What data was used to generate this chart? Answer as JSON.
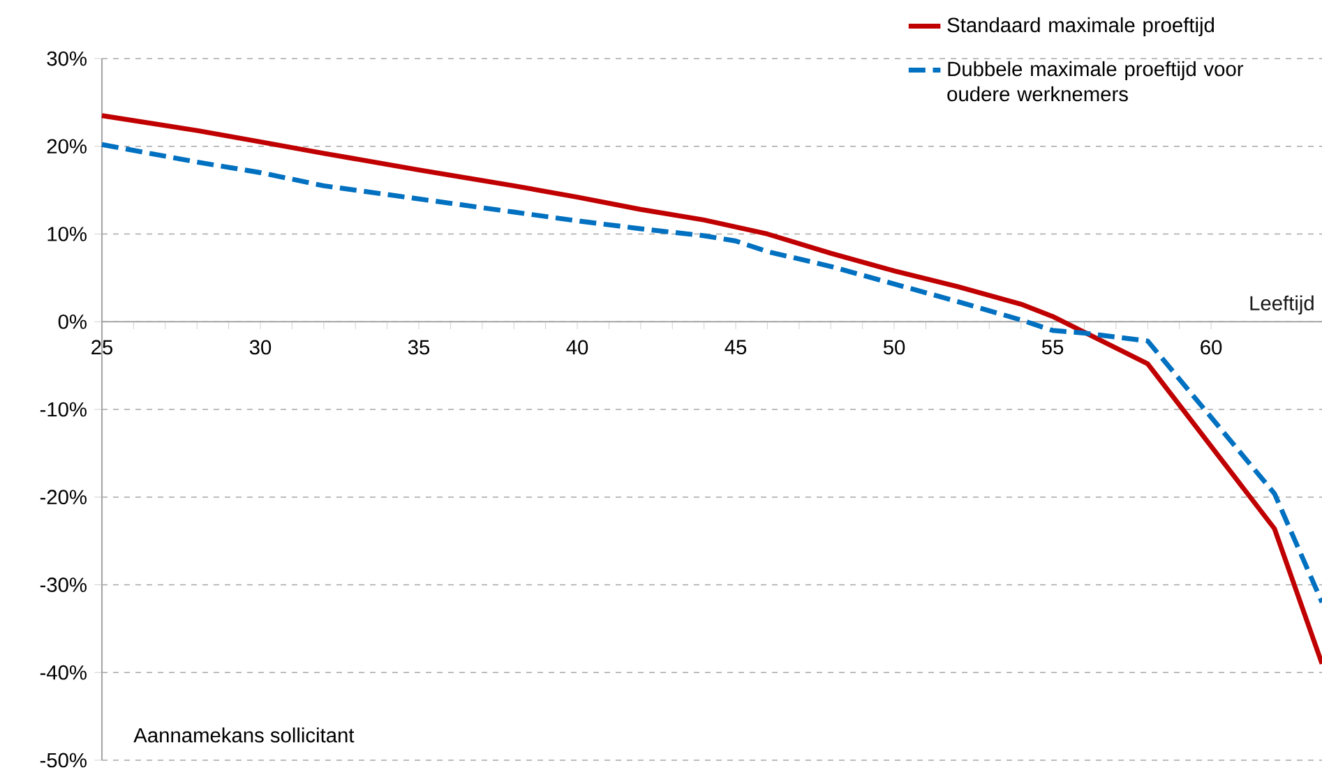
{
  "chart_data": {
    "type": "line",
    "xlabel": "Leeftijd",
    "ylabel": "Aannamekans sollicitant",
    "xlim": [
      25,
      63.5
    ],
    "xticks": [
      25,
      30,
      35,
      40,
      45,
      50,
      55,
      60
    ],
    "ylim": [
      -50,
      30
    ],
    "yticks": [
      {
        "value": 30,
        "label": "30%"
      },
      {
        "value": 20,
        "label": "20%"
      },
      {
        "value": 10,
        "label": "10%"
      },
      {
        "value": 0,
        "label": "0%"
      },
      {
        "value": -10,
        "label": "-10%"
      },
      {
        "value": -20,
        "label": "-20%"
      },
      {
        "value": -30,
        "label": "-30%"
      },
      {
        "value": -40,
        "label": "-40%"
      },
      {
        "value": -50,
        "label": "-50%"
      }
    ],
    "grid": "y",
    "legend": "top right",
    "series": [
      {
        "name": "Standaard maximale proeftijd",
        "color": "#c00000",
        "line_style": "solid",
        "x": [
          25,
          28,
          30,
          32,
          35,
          38,
          40,
          42,
          44,
          46,
          48,
          50,
          52,
          54,
          55,
          58,
          62,
          63.5
        ],
        "values": [
          23.5,
          21.8,
          20.5,
          19.2,
          17.3,
          15.5,
          14.2,
          12.8,
          11.6,
          10,
          7.8,
          5.8,
          4,
          2,
          0.6,
          -4.8,
          -23.6,
          -39
        ]
      },
      {
        "name": "Dubbele maximale proeftijd voor oudere werknemers",
        "color": "#0070c0",
        "line_style": "dashed",
        "x": [
          25,
          28,
          30,
          32,
          35,
          38,
          40,
          42,
          44,
          45,
          46,
          48,
          50,
          52,
          54,
          55,
          56,
          58,
          62,
          63.5
        ],
        "values": [
          20.2,
          18.2,
          17,
          15.5,
          14,
          12.5,
          11.5,
          10.6,
          9.8,
          9.2,
          8,
          6.3,
          4.3,
          2.3,
          0.2,
          -1,
          -1.3,
          -2.2,
          -19.6,
          -32
        ]
      }
    ]
  }
}
